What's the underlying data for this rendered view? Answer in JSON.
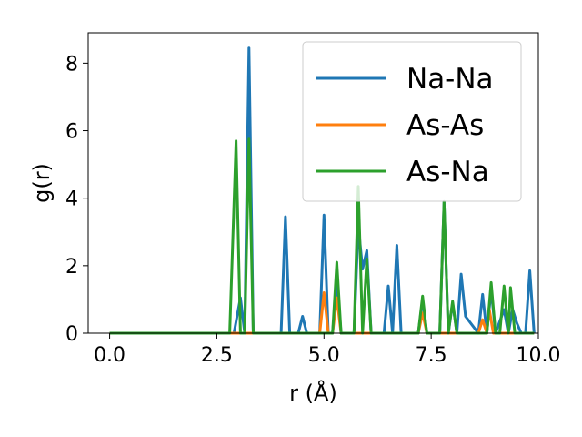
{
  "chart_data": {
    "type": "line",
    "xlabel": "r (Å)",
    "ylabel": "g(r)",
    "xlim": [
      -0.5,
      10.0
    ],
    "ylim": [
      0,
      8.9
    ],
    "xticks": [
      0.0,
      2.5,
      5.0,
      7.5,
      10.0
    ],
    "xtick_labels": [
      "0.0",
      "2.5",
      "5.0",
      "7.5",
      "10.0"
    ],
    "yticks": [
      0,
      2,
      4,
      6,
      8
    ],
    "ytick_labels": [
      "0",
      "2",
      "4",
      "6",
      "8"
    ],
    "legend_position": "top-right",
    "grid": false,
    "series": [
      {
        "name": "Na-Na",
        "color": "#1f77b4",
        "points": [
          [
            0.0,
            0
          ],
          [
            2.9,
            0
          ],
          [
            3.05,
            1.05
          ],
          [
            3.15,
            0
          ],
          [
            3.25,
            8.45
          ],
          [
            3.35,
            0
          ],
          [
            4.0,
            0
          ],
          [
            4.1,
            3.45
          ],
          [
            4.2,
            0
          ],
          [
            4.4,
            0
          ],
          [
            4.5,
            0.5
          ],
          [
            4.6,
            0
          ],
          [
            4.9,
            0
          ],
          [
            5.0,
            3.5
          ],
          [
            5.1,
            0
          ],
          [
            5.2,
            0
          ],
          [
            5.3,
            1.5
          ],
          [
            5.4,
            0
          ],
          [
            5.7,
            0
          ],
          [
            5.8,
            3.2
          ],
          [
            5.9,
            1.9
          ],
          [
            6.0,
            2.45
          ],
          [
            6.1,
            0
          ],
          [
            6.4,
            0
          ],
          [
            6.5,
            1.4
          ],
          [
            6.6,
            0
          ],
          [
            6.7,
            2.6
          ],
          [
            6.8,
            0
          ],
          [
            7.2,
            0
          ],
          [
            7.3,
            1.0
          ],
          [
            7.4,
            0
          ],
          [
            7.7,
            0
          ],
          [
            7.8,
            3.9
          ],
          [
            7.9,
            0
          ],
          [
            8.0,
            0.9
          ],
          [
            8.1,
            0
          ],
          [
            8.2,
            1.75
          ],
          [
            8.3,
            0.5
          ],
          [
            8.6,
            0
          ],
          [
            8.7,
            1.15
          ],
          [
            8.8,
            0
          ],
          [
            8.9,
            1.3
          ],
          [
            9.0,
            0
          ],
          [
            9.2,
            0.7
          ],
          [
            9.3,
            0
          ],
          [
            9.4,
            0.7
          ],
          [
            9.5,
            0.3
          ],
          [
            9.6,
            0
          ],
          [
            9.7,
            0
          ],
          [
            9.8,
            1.85
          ],
          [
            9.9,
            0
          ]
        ]
      },
      {
        "name": "As-As",
        "color": "#ff7f0e",
        "points": [
          [
            0.0,
            0
          ],
          [
            4.9,
            0
          ],
          [
            5.0,
            1.2
          ],
          [
            5.1,
            0
          ],
          [
            5.2,
            0
          ],
          [
            5.3,
            1.05
          ],
          [
            5.4,
            0
          ],
          [
            7.2,
            0
          ],
          [
            7.3,
            0.6
          ],
          [
            7.4,
            0
          ],
          [
            8.6,
            0
          ],
          [
            8.7,
            0.4
          ],
          [
            8.8,
            0
          ],
          [
            8.85,
            0.75
          ],
          [
            8.95,
            0
          ],
          [
            9.9,
            0
          ]
        ]
      },
      {
        "name": "As-Na",
        "color": "#2ca02c",
        "points": [
          [
            0.0,
            0
          ],
          [
            2.8,
            0
          ],
          [
            2.95,
            5.7
          ],
          [
            3.05,
            0
          ],
          [
            3.15,
            0
          ],
          [
            3.25,
            5.75
          ],
          [
            3.35,
            0
          ],
          [
            4.2,
            0
          ],
          [
            4.2,
            0
          ],
          [
            5.2,
            0
          ],
          [
            5.3,
            2.1
          ],
          [
            5.4,
            0
          ],
          [
            5.7,
            0
          ],
          [
            5.8,
            4.35
          ],
          [
            5.9,
            0
          ],
          [
            6.0,
            2.2
          ],
          [
            6.1,
            0
          ],
          [
            7.2,
            0
          ],
          [
            7.3,
            1.1
          ],
          [
            7.4,
            0
          ],
          [
            7.7,
            0
          ],
          [
            7.8,
            3.9
          ],
          [
            7.9,
            0
          ],
          [
            8.0,
            0.95
          ],
          [
            8.1,
            0
          ],
          [
            8.8,
            0
          ],
          [
            8.9,
            1.5
          ],
          [
            9.0,
            0
          ],
          [
            9.1,
            0
          ],
          [
            9.2,
            1.4
          ],
          [
            9.3,
            0
          ],
          [
            9.35,
            1.35
          ],
          [
            9.45,
            0
          ],
          [
            9.9,
            0
          ]
        ]
      }
    ]
  }
}
